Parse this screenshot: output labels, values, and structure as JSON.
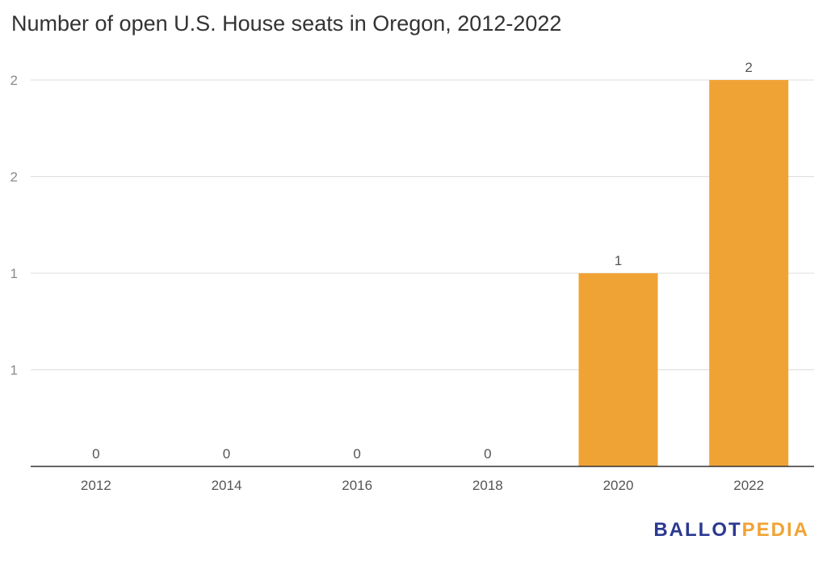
{
  "chart_data": {
    "type": "bar",
    "title": "Number of open U.S. House seats in Oregon, 2012-2022",
    "categories": [
      "2012",
      "2014",
      "2016",
      "2018",
      "2020",
      "2022"
    ],
    "values": [
      0,
      0,
      0,
      0,
      1,
      2
    ],
    "data_labels": [
      "0",
      "0",
      "0",
      "0",
      "1",
      "2"
    ],
    "y_ticks": [
      0.5,
      1,
      1.5,
      2
    ],
    "y_tick_labels": [
      "1",
      "1",
      "2",
      "2"
    ],
    "ylim": [
      0,
      2
    ],
    "grid": true,
    "bar_color": "#f0a335"
  },
  "brand": {
    "part1": "BALLOT",
    "part2": "PEDIA"
  },
  "colors": {
    "logo_blue": "#2b3990",
    "logo_orange": "#f0a335"
  }
}
